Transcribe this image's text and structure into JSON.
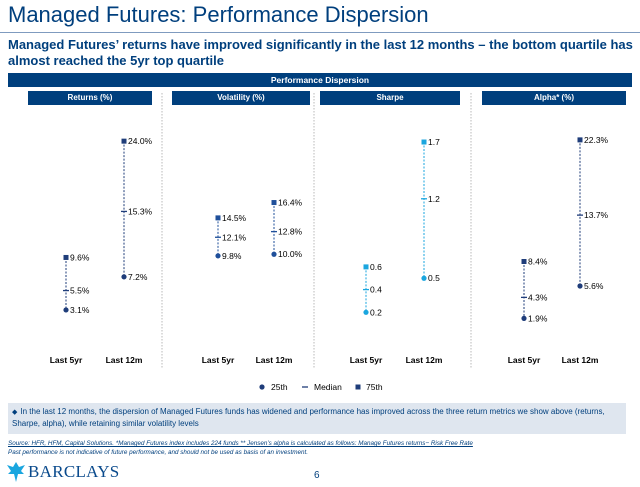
{
  "header": {
    "title": "Managed Futures: Performance Dispersion",
    "subtitle": "Managed Futures’ returns have improved significantly in the last 12 months – the bottom quartile has almost reached the 5yr top quartile"
  },
  "banner": "Performance Dispersion",
  "chart_data": {
    "type": "range",
    "title": "Performance Dispersion",
    "legend": [
      "25th",
      "Median",
      "75th"
    ],
    "legend_placement": "bottom-center",
    "panels": [
      {
        "name": "Returns (%)",
        "color": "#1f3d7a",
        "categories": [
          "Last 5yr",
          "Last 12m"
        ],
        "ylim": [
          0,
          26
        ],
        "series": [
          {
            "category": "Last 5yr",
            "p25": 3.1,
            "median": 5.5,
            "p75": 9.6,
            "labels": {
              "p25": "3.1%",
              "median": "5.5%",
              "p75": "9.6%"
            }
          },
          {
            "category": "Last 12m",
            "p25": 7.2,
            "median": 15.3,
            "p75": 24.0,
            "labels": {
              "p25": "7.2%",
              "median": "15.3%",
              "p75": "24.0%"
            }
          }
        ]
      },
      {
        "name": "Volatility (%)",
        "color": "#1f4f9a",
        "categories": [
          "Last 5yr",
          "Last 12m"
        ],
        "ylim": [
          0,
          26
        ],
        "series": [
          {
            "category": "Last 5yr",
            "p25": 9.8,
            "median": 12.1,
            "p75": 14.5,
            "labels": {
              "p25": "9.8%",
              "median": "12.1%",
              "p75": "14.5%"
            }
          },
          {
            "category": "Last 12m",
            "p25": 10.0,
            "median": 12.8,
            "p75": 16.4,
            "labels": {
              "p25": "10.0%",
              "median": "12.8%",
              "p75": "16.4%"
            }
          }
        ]
      },
      {
        "name": "Sharpe",
        "color": "#1aa6df",
        "categories": [
          "Last 5yr",
          "Last 12m"
        ],
        "ylim": [
          0,
          1.85
        ],
        "series": [
          {
            "category": "Last 5yr",
            "p25": 0.2,
            "median": 0.4,
            "p75": 0.6,
            "labels": {
              "p25": "0.2",
              "median": "0.4",
              "p75": "0.6"
            }
          },
          {
            "category": "Last 12m",
            "p25": 0.5,
            "median": 1.2,
            "p75": 1.7,
            "labels": {
              "p25": "0.5",
              "median": "1.2",
              "p75": "1.7"
            }
          }
        ]
      },
      {
        "name": "Alpha* (%)",
        "color": "#1f3d7a",
        "categories": [
          "Last 5yr",
          "Last 12m"
        ],
        "ylim": [
          0,
          24
        ],
        "series": [
          {
            "category": "Last 5yr",
            "p25": 1.9,
            "median": 4.3,
            "p75": 8.4,
            "labels": {
              "p25": "1.9%",
              "median": "4.3%",
              "p75": "8.4%"
            }
          },
          {
            "category": "Last 12m",
            "p25": 5.6,
            "median": 13.7,
            "p75": 22.3,
            "labels": {
              "p25": "5.6%",
              "median": "13.7%",
              "p75": "22.3%"
            }
          }
        ]
      }
    ]
  },
  "footnote": "In the last 12 months, the dispersion of Managed Futures funds has widened and performance has improved across the three return metrics we show above (returns, Sharpe, alpha), while retaining similar volatility levels",
  "source": "Source: HFR, HFM, Capital Solutions. *Managed Futures index includes 224 funds ** Jensen’s alpha is calculated as follows: Manage Futures returns− Risk Free Rate",
  "disclaimer": "Past performance is not indicative of future performance, and should not be used as basis of an investment.",
  "brand": "BARCLAYS",
  "page_number": "6",
  "colors": {
    "navy": "#003f7d",
    "dark": "#1f3d7a",
    "light_blue": "#1aa6df"
  }
}
